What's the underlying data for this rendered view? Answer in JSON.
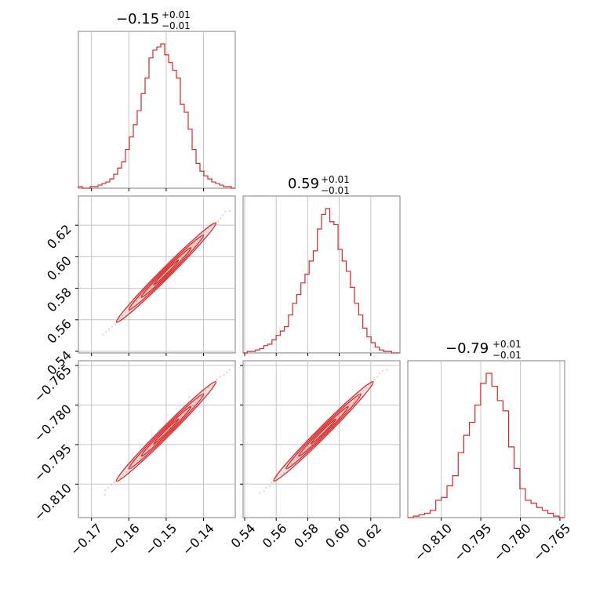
{
  "chart_data": {
    "type": "corner",
    "colors": {
      "series": "#d62728",
      "grid": "#c4c4c4",
      "frame": "#7f7f7f"
    },
    "grid": true,
    "parameters": [
      {
        "title_main": "−0.15",
        "title_plus": "+0.01",
        "title_minus": "−0.01",
        "range": [
          -0.1735,
          -0.1315
        ],
        "ticks": [
          -0.17,
          -0.16,
          -0.15,
          -0.14
        ],
        "tick_labels": [
          "−0.17",
          "−0.16",
          "−0.15",
          "−0.14"
        ],
        "hist_values": [
          0.01,
          0.0,
          0.0,
          0.01,
          0.01,
          0.02,
          0.03,
          0.04,
          0.06,
          0.09,
          0.13,
          0.17,
          0.25,
          0.33,
          0.41,
          0.5,
          0.61,
          0.71,
          0.84,
          0.89,
          0.91,
          0.93,
          0.86,
          0.81,
          0.76,
          0.71,
          0.54,
          0.49,
          0.38,
          0.25,
          0.16,
          0.11,
          0.08,
          0.06,
          0.04,
          0.03,
          0.02,
          0.01,
          0.01,
          0.0
        ]
      },
      {
        "title_main": "0.59",
        "title_plus": "+0.01",
        "title_minus": "−0.01",
        "range": [
          0.539,
          0.6385
        ],
        "ticks": [
          0.54,
          0.56,
          0.58,
          0.6,
          0.62
        ],
        "tick_labels": [
          "0.54",
          "0.56",
          "0.58",
          "0.60",
          "0.62"
        ],
        "hist_values": [
          0.0,
          0.01,
          0.01,
          0.02,
          0.03,
          0.05,
          0.06,
          0.09,
          0.12,
          0.15,
          0.18,
          0.26,
          0.34,
          0.4,
          0.48,
          0.54,
          0.63,
          0.7,
          0.85,
          0.95,
          0.99,
          0.9,
          0.88,
          0.71,
          0.63,
          0.56,
          0.45,
          0.34,
          0.26,
          0.17,
          0.11,
          0.07,
          0.04,
          0.02,
          0.01,
          0.01,
          0.0,
          0.0
        ]
      },
      {
        "title_main": "−0.79",
        "title_plus": "+0.01",
        "title_minus": "−0.01",
        "range": [
          -0.8227,
          -0.7632
        ],
        "ticks": [
          -0.81,
          -0.795,
          -0.78,
          -0.765
        ],
        "tick_labels": [
          "−0.810",
          "−0.795",
          "−0.780",
          "−0.765"
        ],
        "hist_values": [
          0.0,
          0.01,
          0.02,
          0.03,
          0.05,
          0.12,
          0.14,
          0.22,
          0.29,
          0.45,
          0.57,
          0.66,
          0.78,
          0.93,
          1.0,
          0.91,
          0.81,
          0.74,
          0.49,
          0.34,
          0.2,
          0.12,
          0.1,
          0.07,
          0.05,
          0.03,
          0.01,
          0.0
        ]
      }
    ],
    "correlation": 0.99
  }
}
